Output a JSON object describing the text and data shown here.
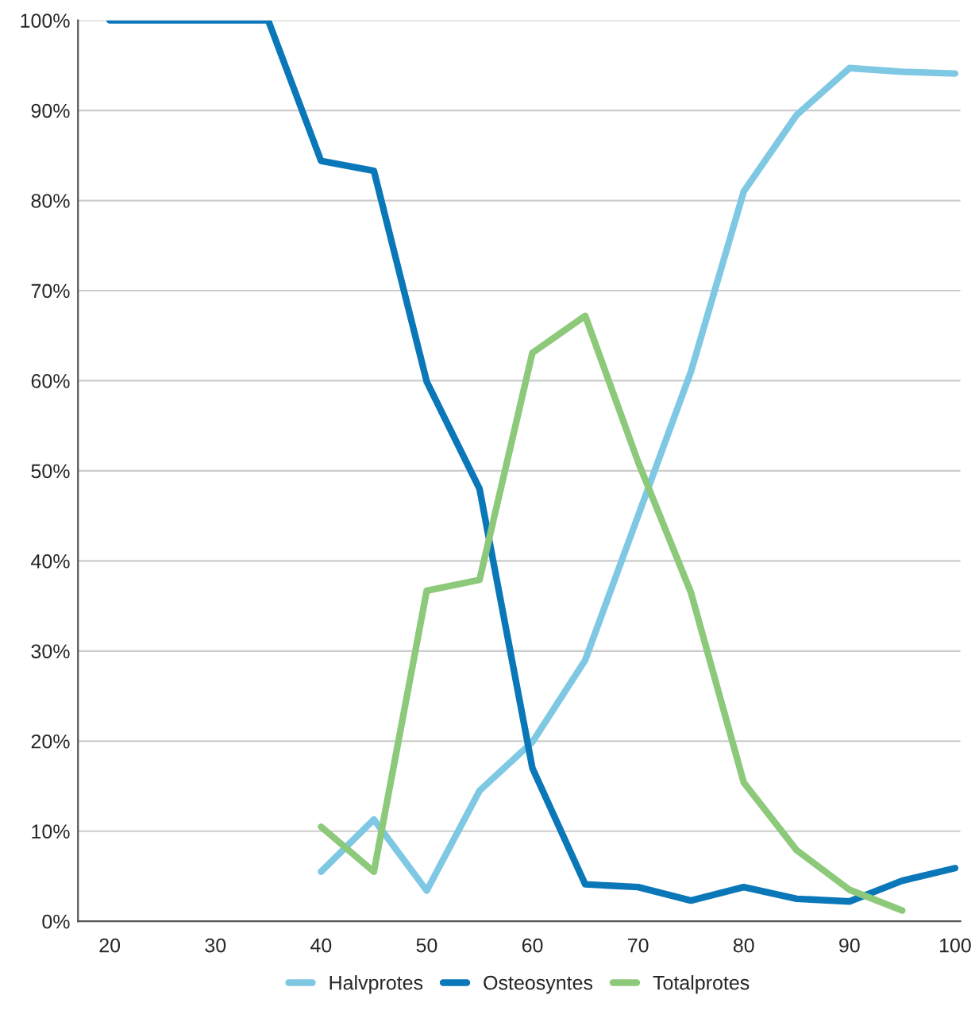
{
  "chart_data": {
    "type": "line",
    "x": [
      20,
      25,
      30,
      35,
      40,
      45,
      50,
      55,
      60,
      65,
      70,
      75,
      80,
      85,
      90,
      95,
      100
    ],
    "series": [
      {
        "name": "Halvprotes",
        "color": "#7ec8e3",
        "values": [
          null,
          null,
          null,
          null,
          5.5,
          11.3,
          3.4,
          14.5,
          19.9,
          29,
          45,
          61,
          81,
          89.5,
          94.7,
          94.3,
          94.1
        ]
      },
      {
        "name": "Osteosyntes",
        "color": "#0a77b8",
        "values": [
          100,
          100,
          100,
          100,
          84.4,
          83.3,
          59.9,
          48,
          17,
          4.1,
          3.8,
          2.3,
          3.8,
          2.5,
          2.2,
          4.5,
          5.9
        ]
      },
      {
        "name": "Totalprotes",
        "color": "#8cc97a",
        "values": [
          null,
          null,
          null,
          null,
          10.5,
          5.5,
          36.7,
          37.9,
          63.1,
          67.2,
          51,
          36.5,
          15.4,
          7.9,
          3.5,
          1.2,
          null
        ]
      }
    ],
    "xlim": [
      17,
      100.5
    ],
    "xticks": [
      20,
      30,
      40,
      50,
      60,
      70,
      80,
      90,
      100
    ],
    "ylim": [
      0,
      100
    ],
    "yticks": [
      {
        "value": 0,
        "label": "0%"
      },
      {
        "value": 10,
        "label": "10%"
      },
      {
        "value": 20,
        "label": "20%"
      },
      {
        "value": 30,
        "label": "30%"
      },
      {
        "value": 40,
        "label": "40%"
      },
      {
        "value": 50,
        "label": "50%"
      },
      {
        "value": 60,
        "label": "60%"
      },
      {
        "value": 70,
        "label": "70%"
      },
      {
        "value": 80,
        "label": "80%"
      },
      {
        "value": 90,
        "label": "90%"
      },
      {
        "value": 100,
        "label": "100%"
      }
    ],
    "grid": "y",
    "legend": "bottom",
    "marker": "none",
    "line_style": "solid"
  }
}
